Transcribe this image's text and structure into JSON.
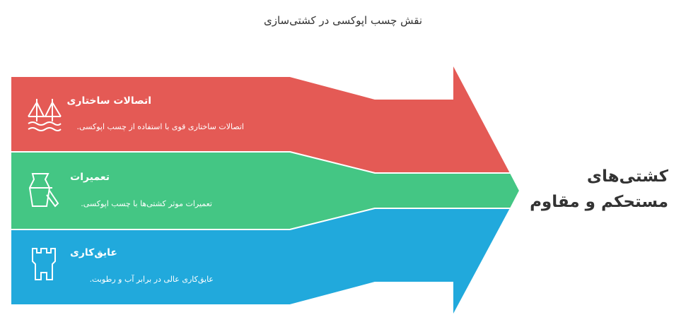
{
  "title": "نقش چسب اپوکسی در کشتی‌سازی",
  "items": [
    {
      "title": "اتصالات ساختاری",
      "description": "اتصالات ساختاری قوی با استفاده از چسب اپوکسی."
    },
    {
      "title": "تعمیرات",
      "description": "تعمیرات موثر کشتی‌ها با چسب اپوکسی."
    },
    {
      "title": "عایق‌کاری",
      "description": "عایق‌کاری عالی در برابر آب و رطوبت."
    }
  ],
  "result": "کشتی‌های مستحکم و مقاوم"
}
